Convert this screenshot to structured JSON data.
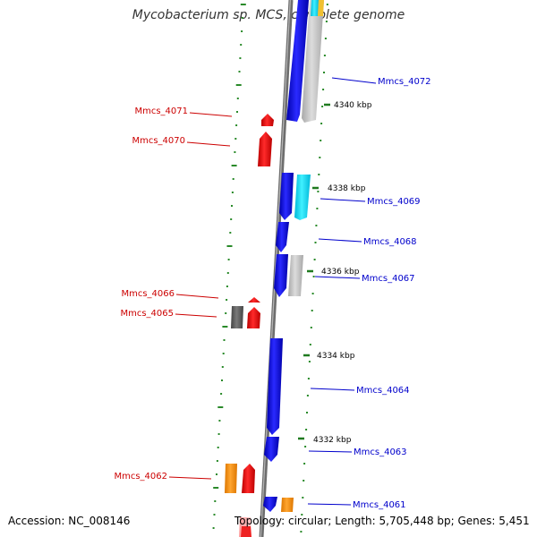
{
  "title": "Mycobacterium sp. MCS, complete genome",
  "accession_text": "Accession: NC_008146",
  "summary_text": "Topology: circular; Length: 5,705,448 bp; Genes: 5,451",
  "colors": {
    "backbone": "#8a8a8a",
    "forward_label": "#0000cc",
    "reverse_label": "#cc0000",
    "dots": "#2a8a2a",
    "ticks": "#1f7a1f"
  },
  "kbp_ticks": [
    {
      "label": "4340 kbp"
    },
    {
      "label": "4338 kbp"
    },
    {
      "label": "4336 kbp"
    },
    {
      "label": "4334 kbp"
    },
    {
      "label": "4332 kbp"
    }
  ],
  "forward_genes": [
    {
      "label": "Mmcs_4072",
      "color": "#0000ee"
    },
    {
      "label": "Mmcs_4069",
      "color": "#0000ee"
    },
    {
      "label": "Mmcs_4068",
      "color": "#0000ee"
    },
    {
      "label": "Mmcs_4067",
      "color": "#0000ee"
    },
    {
      "label": "Mmcs_4064",
      "color": "#0000ee"
    },
    {
      "label": "Mmcs_4063",
      "color": "#0000ee"
    },
    {
      "label": "Mmcs_4061",
      "color": "#0000ee"
    }
  ],
  "reverse_genes": [
    {
      "label": "Mmcs_4071",
      "color": "#ee0000"
    },
    {
      "label": "Mmcs_4070",
      "color": "#ee0000"
    },
    {
      "label": "Mmcs_4066",
      "color": "#ee0000"
    },
    {
      "label": "Mmcs_4065",
      "color": "#ee0000"
    },
    {
      "label": "Mmcs_4062",
      "color": "#ee0000"
    }
  ]
}
